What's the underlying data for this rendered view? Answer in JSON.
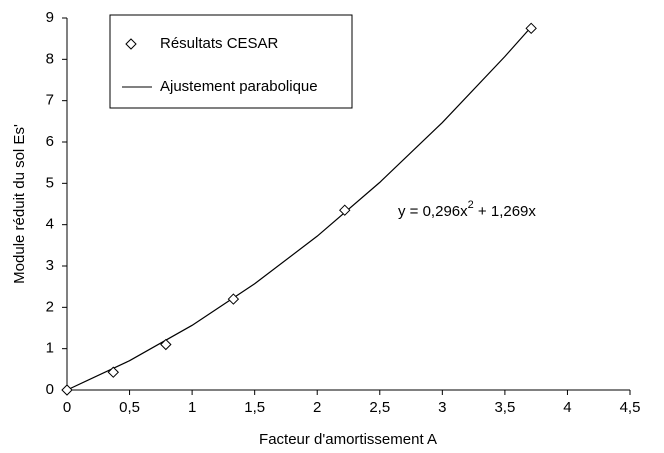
{
  "chart_data": {
    "type": "scatter",
    "xlabel": "Facteur d'amortissement A",
    "ylabel": "Module réduit du sol Es'",
    "xlim": [
      0,
      4.5
    ],
    "ylim": [
      0,
      9
    ],
    "xticks": [
      0,
      {
        "value": 0.5,
        "label": "0,5"
      },
      1,
      {
        "value": 1.5,
        "label": "1,5"
      },
      2,
      {
        "value": 2.5,
        "label": "2,5"
      },
      3,
      {
        "value": 3.5,
        "label": "3,5"
      },
      4,
      {
        "value": 4.5,
        "label": "4,5"
      }
    ],
    "yticks": [
      0,
      1,
      2,
      3,
      4,
      5,
      6,
      7,
      8,
      9
    ],
    "grid": false,
    "legend": "upper left",
    "annotation": {
      "prefix": "y = 0,296x",
      "exponent": "2",
      "suffix": " + 1,269x"
    },
    "series": [
      {
        "name": "Résultats CESAR",
        "type": "scatter",
        "color": "#000000",
        "x": [
          0,
          0.37,
          0.79,
          1.33,
          2.22,
          3.71
        ],
        "values": [
          0,
          0.43,
          1.1,
          2.2,
          4.35,
          8.75
        ]
      },
      {
        "name": "Ajustement parabolique",
        "type": "line",
        "color": "#000000",
        "x": [
          0,
          0.5,
          1,
          1.5,
          2,
          2.5,
          3,
          3.5,
          3.71
        ],
        "values": [
          0,
          0.709,
          1.565,
          2.57,
          3.722,
          5.023,
          6.471,
          8.068,
          8.782
        ]
      }
    ]
  }
}
